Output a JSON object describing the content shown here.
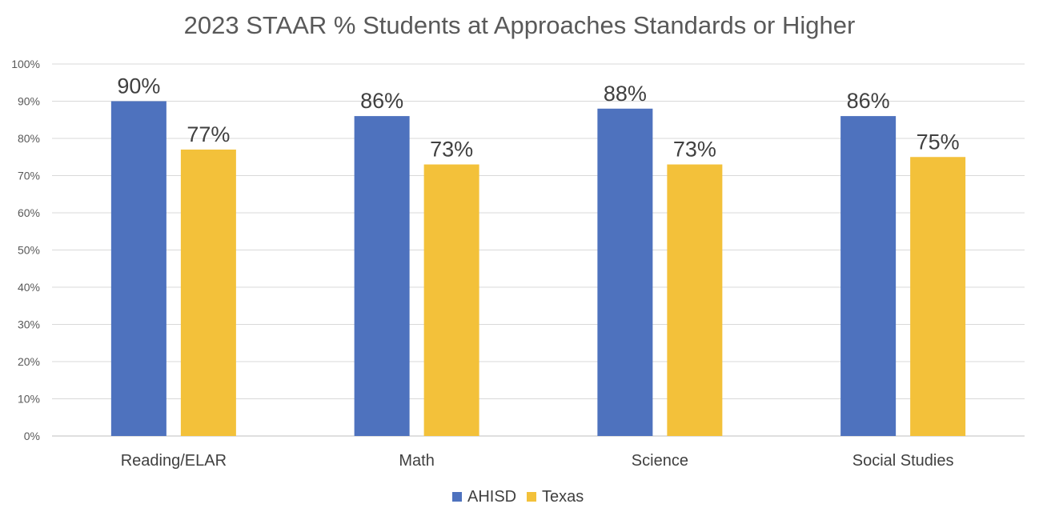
{
  "chart_data": {
    "type": "bar",
    "title": "2023 STAAR % Students at Approaches Standards or Higher",
    "categories": [
      "Reading/ELAR",
      "Math",
      "Science",
      "Social Studies"
    ],
    "series": [
      {
        "name": "AHISD",
        "color": "#4E72BE",
        "values": [
          90,
          86,
          88,
          86
        ],
        "labels": [
          "90%",
          "86%",
          "88%",
          "86%"
        ]
      },
      {
        "name": "Texas",
        "color": "#F3C13A",
        "values": [
          77,
          73,
          73,
          75
        ],
        "labels": [
          "77%",
          "73%",
          "73%",
          "75%"
        ]
      }
    ],
    "ylim": [
      0,
      100
    ],
    "yticks": [
      0,
      10,
      20,
      30,
      40,
      50,
      60,
      70,
      80,
      90,
      100
    ],
    "ytick_labels": [
      "0%",
      "10%",
      "20%",
      "30%",
      "40%",
      "50%",
      "60%",
      "70%",
      "80%",
      "90%",
      "100%"
    ],
    "xlabel": "",
    "ylabel": "",
    "grid": true,
    "legend_position": "bottom-center",
    "gridline_color": "#D9D9D9"
  }
}
